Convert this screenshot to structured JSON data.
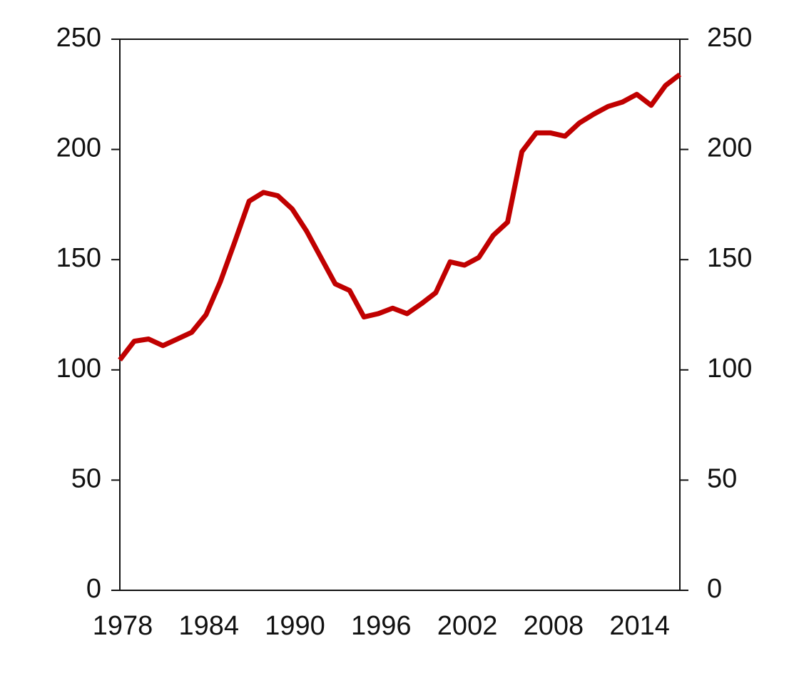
{
  "chart_data": {
    "type": "line",
    "x": [
      1978,
      1979,
      1980,
      1981,
      1982,
      1983,
      1984,
      1985,
      1986,
      1987,
      1988,
      1989,
      1990,
      1991,
      1992,
      1993,
      1994,
      1995,
      1996,
      1997,
      1998,
      1999,
      2000,
      2001,
      2002,
      2003,
      2004,
      2005,
      2006,
      2007,
      2008,
      2009,
      2010,
      2011,
      2012,
      2013,
      2014,
      2015,
      2016,
      2017
    ],
    "series": [
      {
        "color": "#c00000",
        "values": [
          104.5,
          113,
          114,
          111,
          114,
          117,
          125,
          140,
          158,
          176.5,
          180.5,
          179,
          173,
          163,
          151,
          139,
          136,
          124,
          125.5,
          128,
          125.5,
          130,
          135,
          149,
          147.5,
          151,
          161,
          167,
          199,
          207.5,
          207.5,
          206,
          212,
          216,
          219.5,
          221.5,
          225,
          220,
          229,
          234
        ]
      }
    ],
    "xlim": [
      1978,
      2017
    ],
    "xticks": [
      1978,
      1984,
      1990,
      1996,
      2002,
      2008,
      2014
    ],
    "ylim": [
      0,
      250
    ],
    "yticks": [
      0,
      50,
      100,
      150,
      200,
      250
    ],
    "y2lim": [
      0,
      250
    ],
    "y2ticks": [
      0,
      50,
      100,
      150,
      200,
      250
    ]
  }
}
